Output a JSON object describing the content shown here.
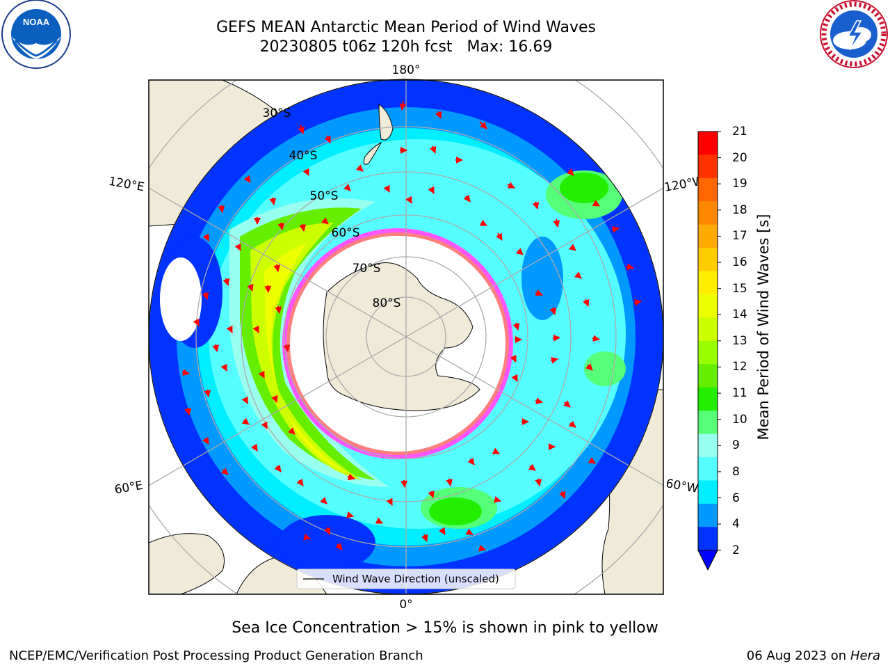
{
  "header": {
    "title_line1": "GEFS MEAN Antarctic Mean Period of Wind Waves",
    "title_line2_run": "20230805 t06z 120h fcst",
    "title_line2_max": "Max: 16.69"
  },
  "logos": {
    "left": "noaa-logo",
    "left_text_ring": "NATIONAL OCEANIC AND ATMOSPHERIC ADMINISTRATION · U.S. DEPARTMENT OF COMMERCE",
    "left_center": "NOAA",
    "right": "nws-logo",
    "right_text_ring": "NATIONAL WEATHER SERVICE"
  },
  "map": {
    "projection": "south-polar-stereographic",
    "longitude_labels": {
      "top": "180°",
      "bottom": "0°",
      "upper_left": "120°E",
      "upper_right": "120°W",
      "lower_left": "60°E",
      "lower_right": "60°W"
    },
    "latitude_labels": [
      "30°S",
      "40°S",
      "50°S",
      "60°S",
      "70°S",
      "80°S"
    ],
    "legend_entry": "Wind Wave Direction (unscaled)"
  },
  "colorbar": {
    "label": "Mean Period of Wind Waves [s]",
    "ticks": [
      "21",
      "20",
      "19",
      "18",
      "17",
      "16",
      "15",
      "14",
      "13",
      "12",
      "11",
      "10",
      "9",
      "8",
      "6",
      "4",
      "2"
    ],
    "colors": [
      "#ff0000",
      "#ff3300",
      "#ff6600",
      "#ff8800",
      "#ffaa00",
      "#ffcc00",
      "#ffee00",
      "#eeff00",
      "#ccff00",
      "#99ff00",
      "#66ee00",
      "#22ee00",
      "#55ff77",
      "#99ffee",
      "#55ffff",
      "#00eeff",
      "#0099ff",
      "#0033ff"
    ],
    "extend_color": "#0000ff"
  },
  "footer": {
    "note": "Sea Ice Concentration > 15% is shown in pink to yellow",
    "credit_left": "NCEP/EMC/Verification Post Processing Product Generation Branch",
    "credit_right_date": "06 Aug 2023 on",
    "credit_right_machine": "Hera"
  }
}
